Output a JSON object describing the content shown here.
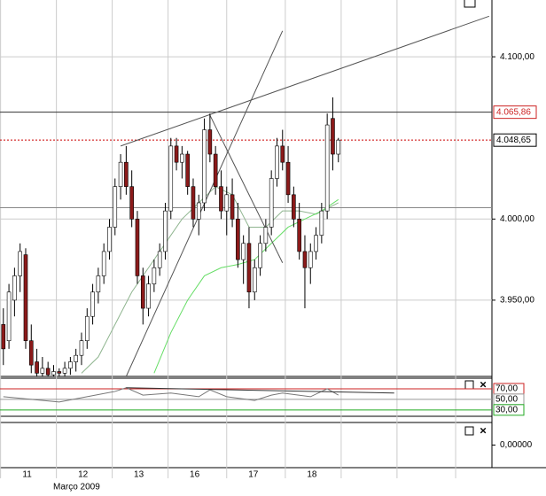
{
  "chart_data": {
    "type": "candlestick",
    "open": [
      3935,
      3925,
      3950,
      3965,
      3978,
      3925,
      3912,
      3905,
      3908,
      3904,
      3906,
      3905,
      3908,
      3912,
      3916,
      3925,
      3940,
      3955,
      3965,
      3980,
      3995,
      4020,
      4035,
      4020,
      4000,
      3965,
      3945,
      3960,
      3970,
      3980,
      4005,
      4045,
      4035,
      4040,
      4020,
      4000,
      4010,
      4055,
      4040,
      4020,
      4005,
      4015,
      4000,
      3975,
      3985,
      3955,
      3970,
      3985,
      3995,
      4025,
      4045,
      4035,
      4015,
      4000,
      3980,
      3970,
      3980,
      3990,
      4005,
      4062,
      4040
    ],
    "high": [
      3945,
      3960,
      3970,
      3985,
      3982,
      3935,
      3920,
      3915,
      3912,
      3910,
      3908,
      3912,
      3915,
      3920,
      3930,
      3945,
      3960,
      3970,
      3985,
      4000,
      4025,
      4040,
      4045,
      4030,
      4005,
      3970,
      3965,
      3975,
      3985,
      4010,
      4050,
      4050,
      4045,
      4042,
      4025,
      4015,
      4062,
      4065,
      4045,
      4030,
      4020,
      4025,
      4010,
      3990,
      3995,
      3975,
      3990,
      4000,
      4030,
      4050,
      4055,
      4045,
      4020,
      4010,
      3990,
      3985,
      3995,
      4010,
      4065,
      4075,
      4050
    ],
    "low": [
      3910,
      3920,
      3940,
      3955,
      3920,
      3905,
      3903,
      3903,
      3903,
      3903,
      3903,
      3903,
      3904,
      3906,
      3910,
      3920,
      3935,
      3948,
      3960,
      3975,
      3990,
      4012,
      4015,
      3995,
      3960,
      3935,
      3940,
      3955,
      3965,
      3975,
      4000,
      4030,
      4025,
      4015,
      3995,
      3990,
      4005,
      4035,
      4015,
      4000,
      3990,
      3995,
      3970,
      3960,
      3945,
      3950,
      3965,
      3980,
      3990,
      4020,
      4030,
      4010,
      3995,
      3975,
      3945,
      3960,
      3975,
      3985,
      4000,
      4030,
      4035
    ],
    "close": [
      3920,
      3955,
      3965,
      3980,
      3925,
      3910,
      3905,
      3908,
      3904,
      3906,
      3905,
      3908,
      3912,
      3916,
      3925,
      3940,
      3955,
      3965,
      3980,
      3995,
      4020,
      4035,
      4020,
      4000,
      3965,
      3945,
      3960,
      3970,
      3980,
      4005,
      4045,
      4035,
      4040,
      4020,
      4000,
      4010,
      4055,
      4040,
      4020,
      4005,
      4015,
      4000,
      3975,
      3985,
      3955,
      3970,
      3985,
      3995,
      4025,
      4045,
      4035,
      4015,
      4000,
      3980,
      3970,
      3980,
      3990,
      4005,
      4058,
      4040,
      4048.65
    ],
    "up_color": "#ffffff",
    "down_color": "#8b1a1a",
    "xlim": [
      -0.6,
      87.5
    ],
    "ylim": [
      3903,
      4135
    ],
    "yticks": [
      {
        "value": 3950,
        "label": "3.950,00"
      },
      {
        "value": 4000,
        "label": "4.000,00"
      },
      {
        "value": 4100,
        "label": "4.100,00"
      }
    ],
    "xticks": [
      {
        "value": -0.5,
        "label": "11"
      },
      {
        "value": 9.5,
        "label": "12"
      },
      {
        "value": 19.5,
        "label": "13"
      },
      {
        "value": 29.5,
        "label": "16"
      },
      {
        "value": 40,
        "label": "17"
      },
      {
        "value": 50.5,
        "label": "18"
      },
      {
        "value": 60.5,
        "label": null
      },
      {
        "value": 70.5,
        "label": null
      },
      {
        "value": 81,
        "label": null
      }
    ],
    "x_caption": "Março 2009",
    "moving_averages": [
      {
        "color": "#8fb58f",
        "x": [
          14,
          17,
          20,
          23,
          26,
          29,
          32,
          35,
          38,
          41,
          44,
          47,
          50,
          53,
          56,
          60
        ],
        "values": [
          3905,
          3915,
          3935,
          3955,
          3970,
          3985,
          4000,
          4010,
          4020,
          4015,
          3995,
          3995,
          4005,
          4005,
          4003,
          4010
        ]
      },
      {
        "color": "#66dd66",
        "x": [
          27,
          30,
          33,
          36,
          39,
          42,
          45,
          48,
          51,
          54,
          57,
          60
        ],
        "values": [
          3905,
          3930,
          3950,
          3965,
          3970,
          3972,
          3975,
          3985,
          3995,
          4000,
          4005,
          4012
        ]
      }
    ],
    "trendlines": [
      {
        "x": [
          21,
          87
        ],
        "values": [
          4045,
          4125
        ]
      },
      {
        "x": [
          22,
          50
        ],
        "values": [
          3903,
          4116
        ]
      },
      {
        "x": [
          37,
          50
        ],
        "values": [
          4064,
          3973
        ]
      }
    ],
    "levels": [
      {
        "value": 4065.86,
        "label": "4.065,86",
        "color": "#333333",
        "label_color": "#cc2222",
        "dash": false
      },
      {
        "value": 4048.65,
        "label": "4.048,65",
        "color": "#cc0000",
        "label_color": "#000000",
        "dash": true
      },
      {
        "value": 4007,
        "label": null,
        "color": "#888888",
        "label_color": null,
        "dash": false
      }
    ],
    "rsi": {
      "ylim": [
        18,
        90
      ],
      "color": "#777777",
      "x": [
        0,
        5,
        10,
        15,
        20,
        22,
        25,
        30,
        35,
        37,
        40,
        45,
        48,
        50,
        55,
        58,
        60
      ],
      "values": [
        55,
        50,
        45,
        55,
        65,
        72,
        58,
        62,
        55,
        68,
        55,
        48,
        58,
        62,
        55,
        70,
        58
      ],
      "trendline": {
        "x": [
          22,
          70
        ],
        "values": [
          72,
          62
        ]
      },
      "levels": [
        {
          "value": 70,
          "label": "70,00",
          "color": "#cc2222"
        },
        {
          "value": 50,
          "label": "50,00",
          "color": "#999999"
        },
        {
          "value": 30,
          "label": "30,00",
          "color": "#22aa22"
        }
      ]
    },
    "volume_panel": {
      "ylim": [
        -1,
        1
      ],
      "yticks": [
        {
          "value": 0,
          "label": "0,00000"
        }
      ]
    }
  }
}
